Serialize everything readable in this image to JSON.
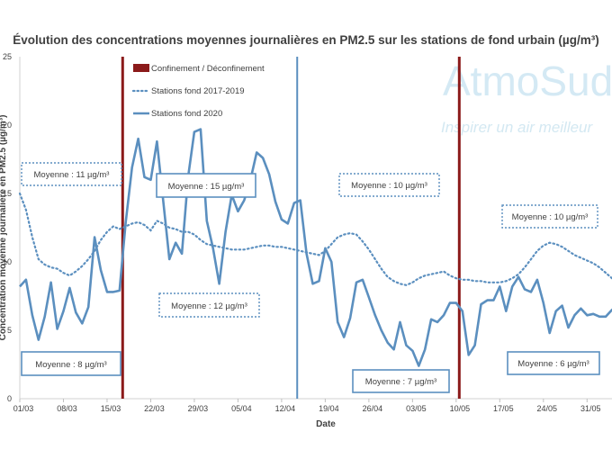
{
  "chart_data": {
    "type": "line",
    "title": "Évolution des concentrations moyennes journalières en PM2.5 sur les stations de fond urbain (µg/m³)",
    "xlabel": "Date",
    "ylabel": "Concentration moyenne journalière en PM2.5 (µg/m³)",
    "ylim": [
      0,
      25
    ],
    "yticks": [
      0,
      5,
      10,
      15,
      20,
      25
    ],
    "x_tick_labels": [
      "01/03",
      "08/03",
      "15/03",
      "22/03",
      "29/03",
      "05/04",
      "12/04",
      "19/04",
      "26/04",
      "03/05",
      "10/05",
      "17/05",
      "24/05",
      "31/05"
    ],
    "x_tick_days": [
      0,
      7,
      14,
      21,
      28,
      35,
      42,
      49,
      56,
      63,
      70,
      77,
      84,
      91
    ],
    "x_range_days": [
      0,
      95
    ],
    "vertical_lines": [
      {
        "day": 16.5,
        "color": "#8b1a1a",
        "label": "Confinement / Déconfinement"
      },
      {
        "day": 44.5,
        "color": "#5b8fbf",
        "label": ""
      },
      {
        "day": 70.5,
        "color": "#8b1a1a",
        "label": ""
      }
    ],
    "series": [
      {
        "name": "Stations fond 2017-2019",
        "style": "dotted",
        "color": "#5b8fbf",
        "values": [
          15.0,
          13.8,
          11.8,
          10.2,
          9.8,
          9.6,
          9.5,
          9.2,
          9.0,
          9.3,
          9.7,
          10.2,
          10.8,
          11.6,
          12.2,
          12.6,
          12.4,
          12.6,
          12.8,
          12.9,
          12.7,
          12.3,
          13.0,
          12.8,
          12.5,
          12.4,
          12.2,
          12.2,
          12.0,
          11.6,
          11.3,
          11.2,
          11.1,
          11.0,
          10.9,
          10.9,
          10.9,
          11.0,
          11.1,
          11.2,
          11.2,
          11.1,
          11.1,
          11.0,
          10.9,
          10.8,
          10.7,
          10.6,
          10.5,
          10.8,
          11.3,
          11.8,
          12.0,
          12.1,
          12.0,
          11.5,
          10.9,
          10.2,
          9.5,
          8.9,
          8.6,
          8.4,
          8.3,
          8.5,
          8.8,
          9.0,
          9.1,
          9.2,
          9.3,
          9.0,
          8.8,
          8.7,
          8.7,
          8.6,
          8.6,
          8.5,
          8.5,
          8.5,
          8.6,
          8.8,
          9.1,
          9.6,
          10.2,
          10.8,
          11.2,
          11.4,
          11.3,
          11.1,
          10.8,
          10.5,
          10.3,
          10.1,
          9.9,
          9.6,
          9.2,
          8.8
        ]
      },
      {
        "name": "Stations fond 2020",
        "style": "solid",
        "color": "#5b8fbf",
        "values": [
          8.2,
          8.7,
          6.1,
          4.3,
          6.0,
          8.5,
          5.1,
          6.4,
          8.1,
          6.3,
          5.5,
          6.7,
          11.8,
          9.4,
          7.8,
          7.8,
          7.9,
          12.9,
          16.9,
          19.0,
          16.2,
          16.0,
          18.8,
          14.5,
          10.2,
          11.4,
          10.6,
          16.2,
          19.5,
          19.7,
          13.0,
          11.0,
          8.4,
          12.2,
          14.9,
          13.7,
          14.5,
          16.0,
          18.0,
          17.6,
          16.4,
          14.4,
          13.1,
          12.8,
          14.3,
          14.5,
          10.6,
          8.4,
          8.6,
          11.0,
          10.0,
          5.6,
          4.5,
          5.9,
          8.5,
          8.7,
          7.4,
          6.1,
          5.0,
          4.1,
          3.6,
          5.6,
          3.9,
          3.5,
          2.4,
          3.6,
          5.8,
          5.6,
          6.1,
          7.0,
          7.0,
          6.4,
          3.2,
          3.9,
          6.9,
          7.2,
          7.2,
          8.2,
          6.4,
          8.2,
          8.9,
          8.0,
          7.8,
          8.7,
          7.0,
          4.8,
          6.4,
          6.8,
          5.2,
          6.1,
          6.6,
          6.1,
          6.2,
          6.0,
          6.0,
          6.5,
          6.3,
          4.2
        ]
      }
    ],
    "averages": [
      {
        "label": "Moyenne : 11 µg/m³",
        "series": "Stations fond 2017-2019"
      },
      {
        "label": "Moyenne : 15 µg/m³",
        "series": "Stations fond 2020"
      },
      {
        "label": "Moyenne : 10 µg/m³",
        "series": "Stations fond 2017-2019"
      },
      {
        "label": "Moyenne : 10 µg/m³",
        "series": "Stations fond 2017-2019"
      },
      {
        "label": "Moyenne : 12 µg/m³",
        "series": "Stations fond 2017-2019"
      },
      {
        "label": "Moyenne : 8 µg/m³",
        "series": "Stations fond 2020"
      },
      {
        "label": "Moyenne : 7 µg/m³",
        "series": "Stations fond 2020"
      },
      {
        "label": "Moyenne : 6 µg/m³",
        "series": "Stations fond 2020"
      }
    ],
    "legend": [
      {
        "label": "Confinement / Déconfinement",
        "kind": "bar",
        "color": "#8b1a1a"
      },
      {
        "label": "Stations fond 2017-2019",
        "kind": "dotted",
        "color": "#5b8fbf"
      },
      {
        "label": "Stations fond 2020",
        "kind": "solid",
        "color": "#5b8fbf"
      }
    ],
    "legend_position": "top-left inside plot",
    "grid": false
  },
  "watermark": {
    "name": "AtmoSud",
    "tagline": "Inspirer un air meilleur"
  },
  "colors": {
    "series_blue": "#5b8fbf",
    "confinement_red": "#8b1a1a",
    "text": "#404040",
    "watermark": "#b8dced"
  }
}
